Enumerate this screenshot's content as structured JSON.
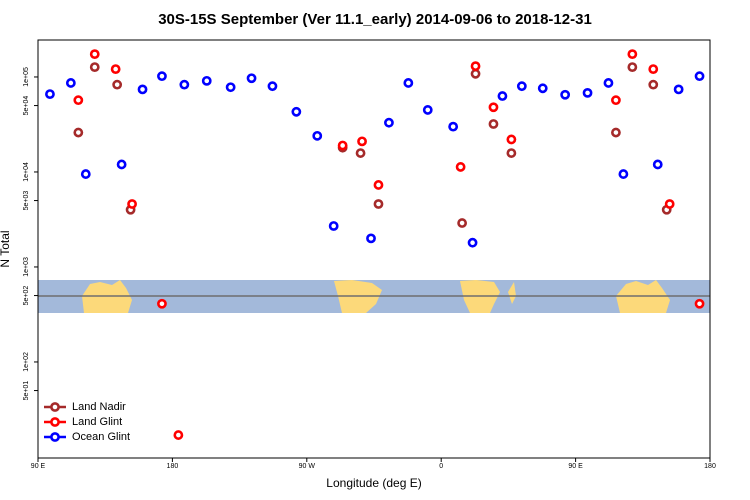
{
  "chart_data": {
    "type": "scatter",
    "title": "30S-15S September (Ver 11.1_early)   2014-09-06 to 2018-12-31",
    "x_label": "Longitude (deg E)",
    "y_label": "N Total",
    "log_y": true,
    "legend": "bottom-left",
    "xlim": [
      90,
      540
    ],
    "xticks": [
      {
        "value": 90,
        "label": "90 E"
      },
      180,
      {
        "value": 270,
        "label": "90 W"
      },
      {
        "value": 360,
        "label": "0"
      },
      {
        "value": 450,
        "label": "90 E"
      },
      {
        "value": 540,
        "label": "180"
      }
    ],
    "ylim": [
      9.75,
      245000
    ],
    "yticks": [
      {
        "value": 50,
        "label": "5e+01"
      },
      {
        "value": 100,
        "label": "1e+02"
      },
      {
        "value": 500,
        "label": "5e+02"
      },
      {
        "value": 1000,
        "label": "1e+03"
      },
      {
        "value": 5000,
        "label": "5e+03"
      },
      {
        "value": 10000,
        "label": "1e+04"
      },
      {
        "value": 50000,
        "label": "5e+04"
      },
      {
        "value": 100000,
        "label": "1e+05"
      }
    ],
    "series": [
      {
        "name": "Land Nadir",
        "color": "#a52a2a",
        "x": [
          117,
          128,
          143,
          152,
          294,
          306,
          318,
          374,
          383,
          395,
          407,
          477,
          488,
          502,
          511
        ],
        "values": [
          26000,
          127000,
          83000,
          4000,
          18000,
          15800,
          4600,
          2900,
          108000,
          32000,
          15800,
          26000,
          127000,
          83000,
          4000
        ]
      },
      {
        "name": "Land Glint",
        "color": "#ff0000",
        "x": [
          117,
          128,
          142,
          153,
          173,
          184,
          294,
          307,
          318,
          373,
          383,
          395,
          407,
          477,
          488,
          502,
          513,
          533
        ],
        "values": [
          57000,
          174000,
          121000,
          4600,
          410,
          17,
          19000,
          21000,
          7300,
          11300,
          130000,
          48000,
          22000,
          57000,
          174000,
          121000,
          4600,
          410
        ]
      },
      {
        "name": "Ocean Glint",
        "color": "#0000ff",
        "x": [
          98,
          112,
          122,
          146,
          160,
          173,
          188,
          203,
          219,
          233,
          247,
          263,
          277,
          288,
          313,
          325,
          338,
          351,
          368,
          381,
          401,
          414,
          428,
          443,
          458,
          472,
          482,
          505,
          519,
          533
        ],
        "values": [
          66000,
          86500,
          9500,
          12000,
          74000,
          102000,
          83000,
          91000,
          78000,
          97000,
          80000,
          43000,
          24000,
          2700,
          2000,
          33000,
          86500,
          45000,
          30000,
          1800,
          63000,
          80000,
          76000,
          65000,
          68000,
          86500,
          9500,
          12000,
          74000,
          102000
        ]
      }
    ]
  }
}
